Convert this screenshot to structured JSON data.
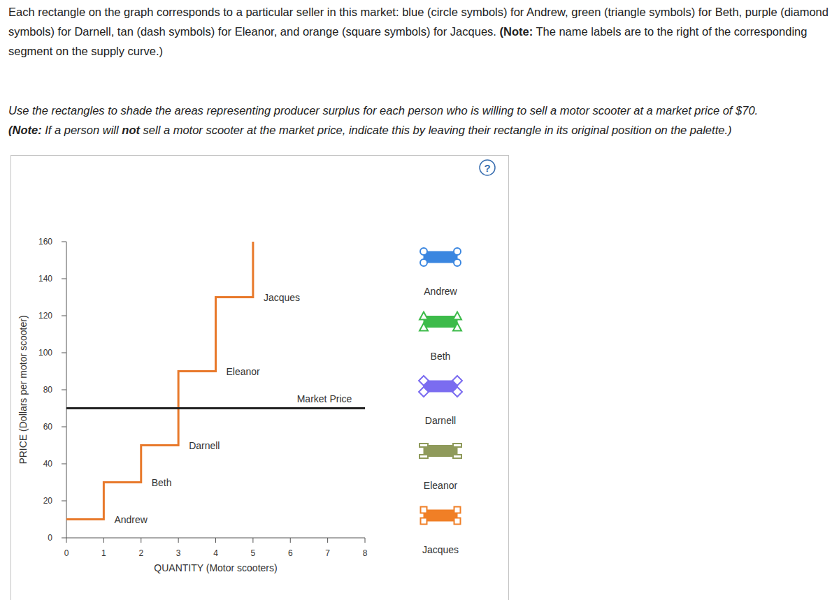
{
  "instructions": {
    "paragraph1": {
      "text": "Each rectangle on the graph corresponds to a particular seller in this market: blue (circle symbols) for Andrew, green (triangle symbols) for Beth, purple (diamond symbols) for Darnell, tan (dash symbols) for Eleanor, and orange (square symbols) for Jacques. ",
      "note_label": "(Note:",
      "note_text": " The name labels are to the right of the corresponding segment on the supply curve.)"
    },
    "paragraph2": {
      "line1": "Use the rectangles to shade the areas representing producer surplus for each person who is willing to sell a motor scooter at a market price of $70.",
      "note_label": "(Note:",
      "before_emphasis": " If a person will ",
      "emphasis": "not",
      "after_emphasis": " sell a motor scooter at the market price, indicate this by leaving their rectangle in its original position on the palette.)"
    }
  },
  "help_icon": "?",
  "chart_data": {
    "type": "line",
    "x_label": "QUANTITY (Motor scooters)",
    "y_label": "PRICE (Dollars per motor scooter)",
    "xlim": [
      0,
      8
    ],
    "ylim": [
      0,
      160
    ],
    "xticks": [
      0,
      1,
      2,
      3,
      4,
      5,
      6,
      7,
      8
    ],
    "yticks": [
      0,
      20,
      40,
      60,
      80,
      100,
      120,
      140,
      160
    ],
    "grid": false,
    "series": [
      {
        "type": "step",
        "color": "#e8792b",
        "x": [
          0,
          1,
          2,
          3,
          4,
          5
        ],
        "values": [
          10,
          30,
          50,
          90,
          130,
          160
        ],
        "labels": [
          "Andrew",
          "Beth",
          "Darnell",
          "Eleanor",
          "Jacques",
          null
        ]
      },
      {
        "name": "Market Price",
        "type": "hline",
        "color": "#222222",
        "values": [
          70
        ]
      }
    ]
  },
  "palette": {
    "items": [
      {
        "name": "Andrew",
        "color": "#3a86e0",
        "marker": "circle"
      },
      {
        "name": "Beth",
        "color": "#3dbb4a",
        "marker": "triangle"
      },
      {
        "name": "Darnell",
        "color": "#7b6cf0",
        "marker": "diamond"
      },
      {
        "name": "Eleanor",
        "color": "#8f9a5b",
        "marker": "dash"
      },
      {
        "name": "Jacques",
        "color": "#f07f26",
        "marker": "square"
      }
    ]
  }
}
